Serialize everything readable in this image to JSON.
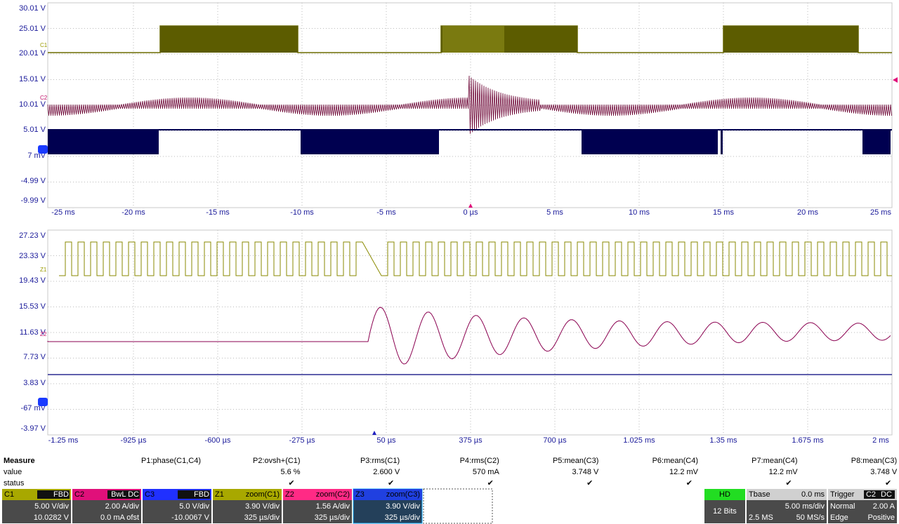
{
  "upper_plot": {
    "y_labels": [
      "30.01 V",
      "25.01 V",
      "20.01 V",
      "15.01 V",
      "10.01 V",
      "5.01 V",
      "7 mV",
      "-4.99 V",
      "-9.99 V"
    ],
    "x_labels": [
      "-25 ms",
      "-20 ms",
      "-15 ms",
      "-10 ms",
      "-5 ms",
      "0 µs",
      "5 ms",
      "10 ms",
      "15 ms",
      "20 ms",
      "25 ms"
    ],
    "trace_markers": [
      "C1",
      "C2"
    ]
  },
  "lower_plot": {
    "y_labels": [
      "27.23 V",
      "23.33 V",
      "19.43 V",
      "15.53 V",
      "11.63 V",
      "7.73 V",
      "3.83 V",
      "-67 mV",
      "-3.97 V"
    ],
    "x_labels": [
      "-1.25 ms",
      "-925 µs",
      "-600 µs",
      "-275 µs",
      "50 µs",
      "375 µs",
      "700 µs",
      "1.025 ms",
      "1.35 ms",
      "1.675 ms",
      "2 ms"
    ],
    "trace_markers": [
      "Z1",
      "Z2"
    ]
  },
  "measure": {
    "title": "Measure",
    "row_labels": [
      "value",
      "status"
    ],
    "columns": [
      {
        "name": "P1:phase(C1,C4)"
      },
      {
        "name": "P2:ovsh+(C1)",
        "value": "5.6 %",
        "status": "✔"
      },
      {
        "name": "P3:rms(C1)",
        "value": "2.600 V",
        "status": "✔"
      },
      {
        "name": "P4:rms(C2)",
        "value": "570 mA",
        "status": "✔"
      },
      {
        "name": "P5:mean(C3)",
        "value": "3.748 V",
        "status": "✔"
      },
      {
        "name": "P6:mean(C4)",
        "value": "12.2 mV",
        "status": "✔"
      },
      {
        "name": "P7:mean(C4)",
        "value": "12.2 mV",
        "status": "✔"
      },
      {
        "name": "P8:mean(C3)",
        "value": "3.748 V",
        "status": "✔"
      }
    ]
  },
  "channels": [
    {
      "name": "C1",
      "flags": "FBD",
      "lines": [
        "5.00 V/div",
        "10.0282 V"
      ]
    },
    {
      "name": "C2",
      "flags": "BwL DC",
      "lines": [
        "2.00 A/div",
        "0.0 mA ofst"
      ]
    },
    {
      "name": "C3",
      "flags": "FBD",
      "lines": [
        "5.0 V/div",
        "-10.0067 V"
      ]
    },
    {
      "name": "Z1",
      "flags": "zoom(C1)",
      "lines": [
        "3.90 V/div",
        "325 µs/div"
      ]
    },
    {
      "name": "Z2",
      "flags": "zoom(C2)",
      "lines": [
        "1.56 A/div",
        "325 µs/div"
      ]
    },
    {
      "name": "Z3",
      "flags": "zoom(C3)",
      "lines": [
        "3.90 V/div",
        "325 µs/div"
      ]
    }
  ],
  "hd": {
    "title": "HD",
    "line": "12 Bits"
  },
  "timebase": {
    "title": "Tbase",
    "delay": "0.0 ms",
    "scale": "5.00 ms/div",
    "samples": "2.5 MS",
    "rate": "50 MS/s"
  },
  "trigger": {
    "title": "Trigger",
    "source": "C2",
    "coupling": "DC",
    "mode": "Normal",
    "level": "2.00 A",
    "kind": "Edge",
    "slope": "Positive"
  }
}
